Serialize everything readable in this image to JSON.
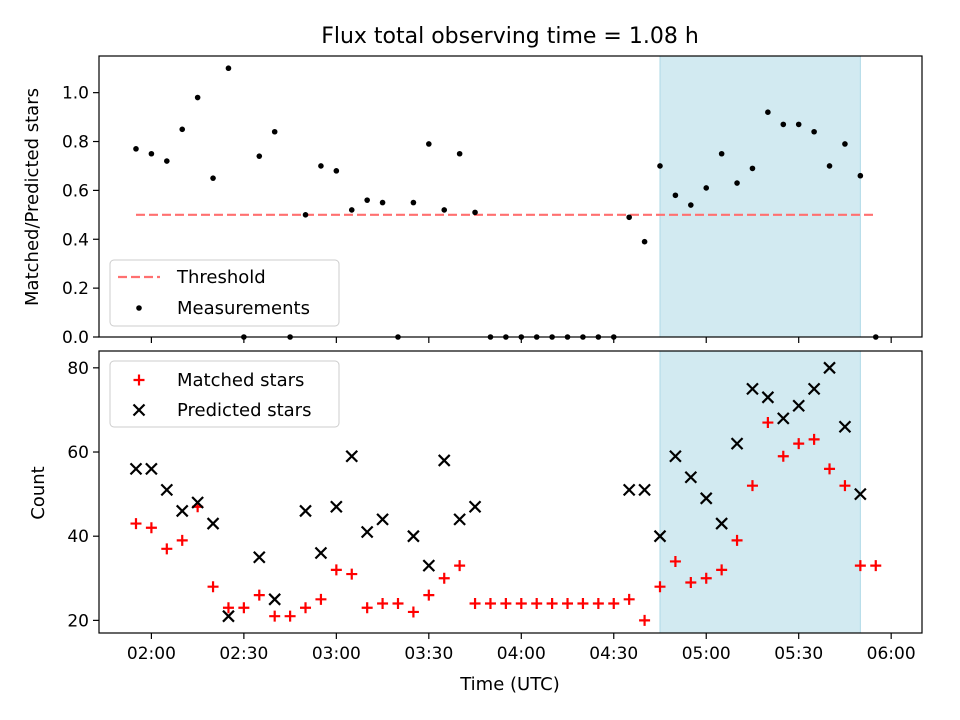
{
  "chart_data": [
    {
      "type": "scatter",
      "title": "Flux total observing time = 1.08 h",
      "xlabel": "",
      "ylabel": "Matched/Predicted stars",
      "ylim": [
        0,
        1.15
      ],
      "yticks": [
        0.0,
        0.2,
        0.4,
        0.6,
        0.8,
        1.0
      ],
      "ytick_labels": [
        "0.0",
        "0.2",
        "0.4",
        "0.6",
        "0.8",
        "1.0"
      ],
      "xlim": [
        "01:43",
        "06:10"
      ],
      "shaded_x_range": [
        "04:45",
        "05:50"
      ],
      "shade_color": "#add8e6",
      "threshold": {
        "name": "Threshold",
        "y": 0.5,
        "x_range": [
          "01:55",
          "05:55"
        ],
        "color": "#ff7070"
      },
      "legend_position": "lower-left",
      "series": [
        {
          "name": "Measurements",
          "marker": "dot",
          "color": "#000000",
          "points": [
            [
              "01:55",
              0.77
            ],
            [
              "02:00",
              0.75
            ],
            [
              "02:05",
              0.72
            ],
            [
              "02:10",
              0.85
            ],
            [
              "02:15",
              0.98
            ],
            [
              "02:20",
              0.65
            ],
            [
              "02:25",
              1.1
            ],
            [
              "02:30",
              0.0
            ],
            [
              "02:35",
              0.74
            ],
            [
              "02:40",
              0.84
            ],
            [
              "02:45",
              0.0
            ],
            [
              "02:50",
              0.5
            ],
            [
              "02:55",
              0.7
            ],
            [
              "03:00",
              0.68
            ],
            [
              "03:05",
              0.52
            ],
            [
              "03:10",
              0.56
            ],
            [
              "03:15",
              0.55
            ],
            [
              "03:20",
              0.0
            ],
            [
              "03:25",
              0.55
            ],
            [
              "03:30",
              0.79
            ],
            [
              "03:35",
              0.52
            ],
            [
              "03:40",
              0.75
            ],
            [
              "03:45",
              0.51
            ],
            [
              "03:50",
              0.0
            ],
            [
              "03:55",
              0.0
            ],
            [
              "04:00",
              0.0
            ],
            [
              "04:05",
              0.0
            ],
            [
              "04:10",
              0.0
            ],
            [
              "04:15",
              0.0
            ],
            [
              "04:20",
              0.0
            ],
            [
              "04:25",
              0.0
            ],
            [
              "04:30",
              0.0
            ],
            [
              "04:35",
              0.49
            ],
            [
              "04:40",
              0.39
            ],
            [
              "04:45",
              0.7
            ],
            [
              "04:50",
              0.58
            ],
            [
              "04:55",
              0.54
            ],
            [
              "05:00",
              0.61
            ],
            [
              "05:05",
              0.75
            ],
            [
              "05:10",
              0.63
            ],
            [
              "05:15",
              0.69
            ],
            [
              "05:20",
              0.92
            ],
            [
              "05:25",
              0.87
            ],
            [
              "05:30",
              0.87
            ],
            [
              "05:35",
              0.84
            ],
            [
              "05:40",
              0.7
            ],
            [
              "05:45",
              0.79
            ],
            [
              "05:50",
              0.66
            ],
            [
              "05:55",
              0.0
            ]
          ]
        }
      ]
    },
    {
      "type": "scatter",
      "title": "",
      "xlabel": "Time (UTC)",
      "ylabel": "Count",
      "ylim": [
        17,
        84
      ],
      "yticks": [
        20,
        40,
        60,
        80
      ],
      "ytick_labels": [
        "20",
        "40",
        "60",
        "80"
      ],
      "xlim": [
        "01:43",
        "06:10"
      ],
      "xticks": [
        "02:00",
        "02:30",
        "03:00",
        "03:30",
        "04:00",
        "04:30",
        "05:00",
        "05:30",
        "06:00"
      ],
      "xtick_labels": [
        "02:00",
        "02:30",
        "03:00",
        "03:30",
        "04:00",
        "04:30",
        "05:00",
        "05:30",
        "06:00"
      ],
      "shaded_x_range": [
        "04:45",
        "05:50"
      ],
      "shade_color": "#add8e6",
      "legend_position": "upper-left",
      "series": [
        {
          "name": "Matched stars",
          "marker": "plus",
          "color": "#ff0000",
          "points": [
            [
              "01:55",
              43
            ],
            [
              "02:00",
              42
            ],
            [
              "02:05",
              37
            ],
            [
              "02:10",
              39
            ],
            [
              "02:15",
              47
            ],
            [
              "02:20",
              28
            ],
            [
              "02:25",
              23
            ],
            [
              "02:30",
              23
            ],
            [
              "02:35",
              26
            ],
            [
              "02:40",
              21
            ],
            [
              "02:45",
              21
            ],
            [
              "02:50",
              23
            ],
            [
              "02:55",
              25
            ],
            [
              "03:00",
              32
            ],
            [
              "03:05",
              31
            ],
            [
              "03:10",
              23
            ],
            [
              "03:15",
              24
            ],
            [
              "03:20",
              24
            ],
            [
              "03:25",
              22
            ],
            [
              "03:30",
              26
            ],
            [
              "03:35",
              30
            ],
            [
              "03:40",
              33
            ],
            [
              "03:45",
              24
            ],
            [
              "03:50",
              24
            ],
            [
              "03:55",
              24
            ],
            [
              "04:00",
              24
            ],
            [
              "04:05",
              24
            ],
            [
              "04:10",
              24
            ],
            [
              "04:15",
              24
            ],
            [
              "04:20",
              24
            ],
            [
              "04:25",
              24
            ],
            [
              "04:30",
              24
            ],
            [
              "04:35",
              25
            ],
            [
              "04:40",
              20
            ],
            [
              "04:45",
              28
            ],
            [
              "04:50",
              34
            ],
            [
              "04:55",
              29
            ],
            [
              "05:00",
              30
            ],
            [
              "05:05",
              32
            ],
            [
              "05:10",
              39
            ],
            [
              "05:15",
              52
            ],
            [
              "05:20",
              67
            ],
            [
              "05:25",
              59
            ],
            [
              "05:30",
              62
            ],
            [
              "05:35",
              63
            ],
            [
              "05:40",
              56
            ],
            [
              "05:45",
              52
            ],
            [
              "05:50",
              33
            ],
            [
              "05:55",
              33
            ]
          ]
        },
        {
          "name": "Predicted stars",
          "marker": "x",
          "color": "#000000",
          "points": [
            [
              "01:55",
              56
            ],
            [
              "02:00",
              56
            ],
            [
              "02:05",
              51
            ],
            [
              "02:10",
              46
            ],
            [
              "02:15",
              48
            ],
            [
              "02:20",
              43
            ],
            [
              "02:25",
              21
            ],
            [
              "02:35",
              35
            ],
            [
              "02:40",
              25
            ],
            [
              "02:50",
              46
            ],
            [
              "02:55",
              36
            ],
            [
              "03:00",
              47
            ],
            [
              "03:05",
              59
            ],
            [
              "03:10",
              41
            ],
            [
              "03:15",
              44
            ],
            [
              "03:25",
              40
            ],
            [
              "03:30",
              33
            ],
            [
              "03:35",
              58
            ],
            [
              "03:40",
              44
            ],
            [
              "03:45",
              47
            ],
            [
              "04:35",
              51
            ],
            [
              "04:40",
              51
            ],
            [
              "04:45",
              40
            ],
            [
              "04:50",
              59
            ],
            [
              "04:55",
              54
            ],
            [
              "05:00",
              49
            ],
            [
              "05:05",
              43
            ],
            [
              "05:10",
              62
            ],
            [
              "05:15",
              75
            ],
            [
              "05:20",
              73
            ],
            [
              "05:25",
              68
            ],
            [
              "05:30",
              71
            ],
            [
              "05:35",
              75
            ],
            [
              "05:40",
              80
            ],
            [
              "05:45",
              66
            ],
            [
              "05:50",
              50
            ]
          ]
        }
      ]
    }
  ]
}
